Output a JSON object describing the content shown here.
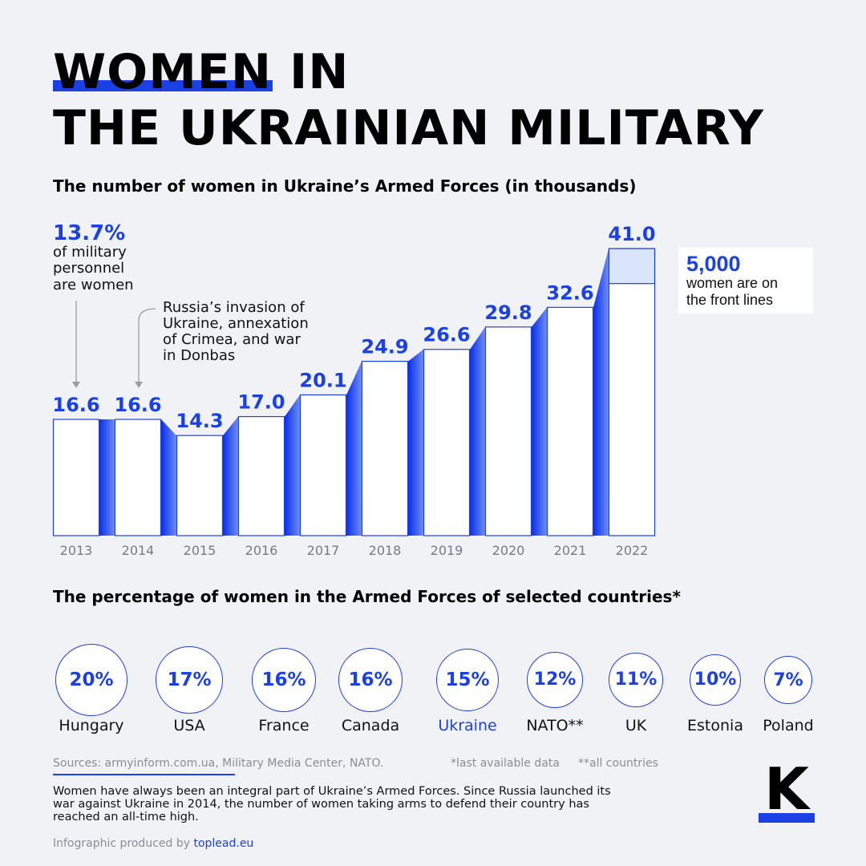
{
  "title": {
    "line1": "WOMEN IN",
    "line2": "THE UKRAINIAN MILITARY"
  },
  "colors": {
    "accent": "#1b41e6",
    "bar_fill": "#ffffff",
    "front_lines_fill": "#d8e5fb",
    "background": "#f1f2f6"
  },
  "chart_data": [
    {
      "type": "bar",
      "title": "The number of women in Ukraine’s Armed Forces (in thousands)",
      "categories": [
        "2013",
        "2014",
        "2015",
        "2016",
        "2017",
        "2018",
        "2019",
        "2020",
        "2021",
        "2022"
      ],
      "values": [
        16.6,
        16.6,
        14.3,
        17.0,
        20.1,
        24.9,
        26.6,
        29.8,
        32.6,
        41.0
      ],
      "value_labels": [
        "16.6",
        "16.6",
        "14.3",
        "17.0",
        "20.1",
        "24.9",
        "26.6",
        "29.8",
        "32.6",
        "41.0"
      ],
      "highlight_segment": {
        "category": "2022",
        "value": 5.0
      },
      "ylim": [
        0,
        41.0
      ],
      "xlabel": "",
      "ylabel": ""
    },
    {
      "type": "bubble",
      "title": "The percentage of women in the Armed Forces of selected countries*",
      "categories": [
        "Hungary",
        "USA",
        "France",
        "Canada",
        "Ukraine",
        "NATO**",
        "UK",
        "Estonia",
        "Poland"
      ],
      "values": [
        20,
        17,
        16,
        16,
        15,
        12,
        11,
        10,
        7
      ],
      "value_labels": [
        "20%",
        "17%",
        "16%",
        "16%",
        "15%",
        "12%",
        "11%",
        "10%",
        "7%"
      ],
      "highlighted": "Ukraine"
    }
  ],
  "annotations": {
    "share": {
      "value": "13.7%",
      "text_lines": [
        "of military",
        "personnel",
        "are women"
      ]
    },
    "invasion": {
      "text_lines": [
        "Russia’s invasion of",
        "Ukraine, annexation",
        "of Crimea, and war",
        "in Donbas"
      ]
    },
    "front_lines": {
      "value": "5,000",
      "text_lines": [
        "women are on",
        "the front lines"
      ]
    }
  },
  "footer": {
    "sources": "Sources: armyinform.com.ua, Military Media Center, NATO.",
    "note1": "*last available data",
    "note2": "**all countries",
    "body": "Women have always been an integral part of Ukraine’s Armed Forces. Since Russia launched its war against Ukraine in 2014, the number of women taking arms to defend their country has reached an all-time high.",
    "credit_prefix": "Infographic produced by ",
    "credit_link": "toplead.eu",
    "logo_letter": "K"
  }
}
